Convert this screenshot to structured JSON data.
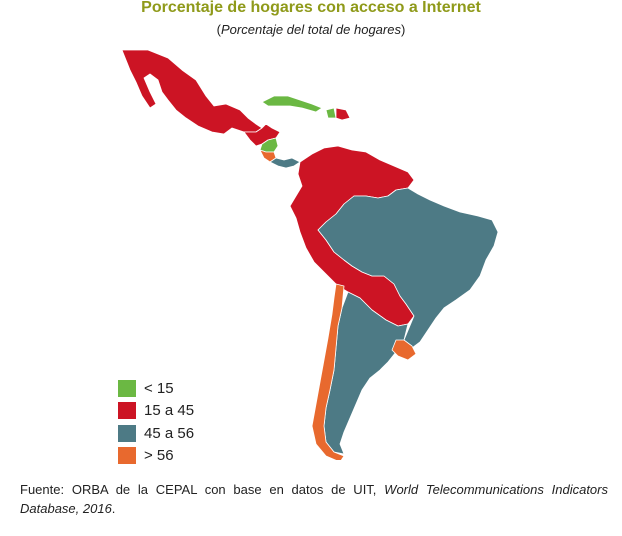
{
  "title": "Porcentaje de hogares con acceso a Internet",
  "subtitle": {
    "open": "(",
    "text": "Porcentaje del total de hogares",
    "close": ")"
  },
  "colors": {
    "lt15": "#6bb843",
    "r15_45": "#cc1424",
    "r45_56": "#4d7a85",
    "gt56": "#e8692e"
  },
  "legend": [
    {
      "label": "< 15",
      "color": "#6bb843"
    },
    {
      "label": "15 a 45",
      "color": "#cc1424"
    },
    {
      "label": "45 a 56",
      "color": "#4d7a85"
    },
    {
      "label": "> 56",
      "color": "#e8692e"
    }
  ],
  "source": {
    "prefix": "Fuente: ORBA de la CEPAL con base en datos de UIT, ",
    "italic": "World Telecommunications Indicators Database, 2016",
    "suffix": "."
  }
}
